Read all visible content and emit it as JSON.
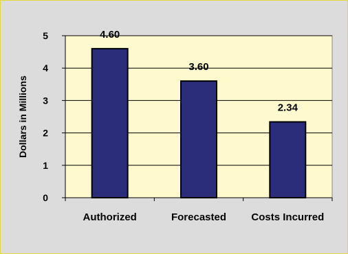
{
  "chart_data": {
    "type": "bar",
    "categories": [
      "Authorized",
      "Forecasted",
      "Costs Incurred"
    ],
    "values": [
      4.6,
      3.6,
      2.34
    ],
    "data_labels": [
      "4.60",
      "3.60",
      "2.34"
    ],
    "title": "",
    "xlabel": "",
    "ylabel": "Dollars in Millions",
    "ylim": [
      0,
      5
    ],
    "yticks": [
      "0",
      "1",
      "2",
      "3",
      "4",
      "5"
    ],
    "grid": true,
    "legend": "none",
    "colors": {
      "bar": "#2b2d7a",
      "bar_outline": "#000000",
      "plot_background": "#fffacd",
      "chart_background": "#dcdcdc",
      "frame_border": "#e2d83a",
      "gridline": "#000000"
    }
  }
}
